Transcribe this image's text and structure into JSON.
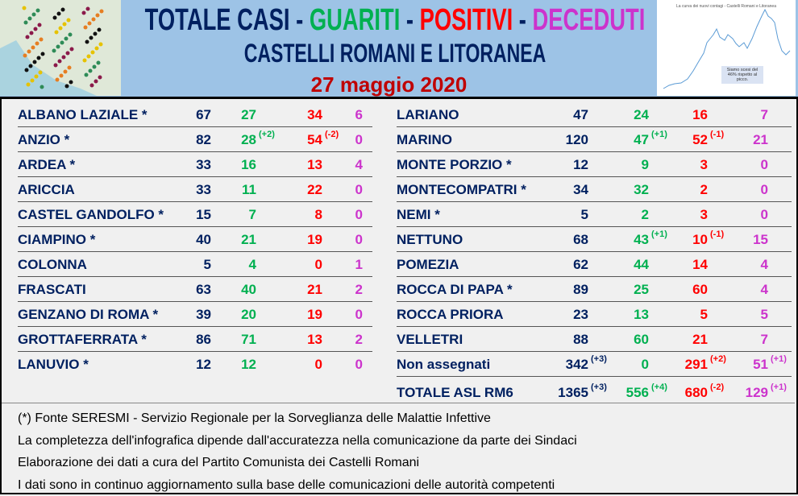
{
  "header": {
    "title_parts": [
      {
        "text": "TOTALE CASI",
        "color": "#002060"
      },
      {
        "text": " - ",
        "color": "#002060"
      },
      {
        "text": "GUARITI",
        "color": "#00b050"
      },
      {
        "text": " - ",
        "color": "#002060"
      },
      {
        "text": "POSITIVI",
        "color": "#ff0000"
      },
      {
        "text": " - ",
        "color": "#002060"
      },
      {
        "text": "DECEDUTI",
        "color": "#cc33cc"
      }
    ],
    "subtitle": "CASTELLI ROMANI E LITORANEA",
    "date": "27 maggio 2020"
  },
  "thumbnail": {
    "title": "La curva dei nuovi contagi - Castelli Romani e Litoranea",
    "note": "Siamo scesi del 46% rispetto al picco."
  },
  "colors": {
    "total": "#002060",
    "guariti": "#00b050",
    "positivi": "#ff0000",
    "deceduti": "#cc33cc"
  },
  "left_rows": [
    {
      "name": "ALBANO LAZIALE *",
      "values": [
        "67",
        "27",
        "34",
        "6"
      ],
      "deltas": [
        "",
        "",
        "",
        ""
      ]
    },
    {
      "name": "ANZIO *",
      "values": [
        "82",
        "28",
        "54",
        "0"
      ],
      "deltas": [
        "",
        "(+2)",
        "(-2)",
        ""
      ]
    },
    {
      "name": "ARDEA *",
      "values": [
        "33",
        "16",
        "13",
        "4"
      ],
      "deltas": [
        "",
        "",
        "",
        ""
      ]
    },
    {
      "name": "ARICCIA",
      "values": [
        "33",
        "11",
        "22",
        "0"
      ],
      "deltas": [
        "",
        "",
        "",
        ""
      ]
    },
    {
      "name": "CASTEL GANDOLFO *",
      "values": [
        "15",
        "7",
        "8",
        "0"
      ],
      "deltas": [
        "",
        "",
        "",
        ""
      ]
    },
    {
      "name": "CIAMPINO *",
      "values": [
        "40",
        "21",
        "19",
        "0"
      ],
      "deltas": [
        "",
        "",
        "",
        ""
      ]
    },
    {
      "name": "COLONNA",
      "values": [
        "5",
        "4",
        "0",
        "1"
      ],
      "deltas": [
        "",
        "",
        "",
        ""
      ]
    },
    {
      "name": "FRASCATI",
      "values": [
        "63",
        "40",
        "21",
        "2"
      ],
      "deltas": [
        "",
        "",
        "",
        ""
      ]
    },
    {
      "name": "GENZANO DI ROMA *",
      "values": [
        "39",
        "20",
        "19",
        "0"
      ],
      "deltas": [
        "",
        "",
        "",
        ""
      ]
    },
    {
      "name": "GROTTAFERRATA *",
      "values": [
        "86",
        "71",
        "13",
        "2"
      ],
      "deltas": [
        "",
        "",
        "",
        ""
      ]
    },
    {
      "name": "LANUVIO *",
      "values": [
        "12",
        "12",
        "0",
        "0"
      ],
      "deltas": [
        "",
        "",
        "",
        ""
      ]
    }
  ],
  "right_rows": [
    {
      "name": "LARIANO",
      "values": [
        "47",
        "24",
        "16",
        "7"
      ],
      "deltas": [
        "",
        "",
        "",
        ""
      ]
    },
    {
      "name": "MARINO",
      "values": [
        "120",
        "47",
        "52",
        "21"
      ],
      "deltas": [
        "",
        "(+1)",
        "(-1)",
        ""
      ]
    },
    {
      "name": "MONTE PORZIO *",
      "values": [
        "12",
        "9",
        "3",
        "0"
      ],
      "deltas": [
        "",
        "",
        "",
        ""
      ]
    },
    {
      "name": "MONTECOMPATRI *",
      "values": [
        "34",
        "32",
        "2",
        "0"
      ],
      "deltas": [
        "",
        "",
        "",
        ""
      ]
    },
    {
      "name": "NEMI *",
      "values": [
        "5",
        "2",
        "3",
        "0"
      ],
      "deltas": [
        "",
        "",
        "",
        ""
      ]
    },
    {
      "name": "NETTUNO",
      "values": [
        "68",
        "43",
        "10",
        "15"
      ],
      "deltas": [
        "",
        "(+1)",
        "(-1)",
        ""
      ]
    },
    {
      "name": "POMEZIA",
      "values": [
        "62",
        "44",
        "14",
        "4"
      ],
      "deltas": [
        "",
        "",
        "",
        ""
      ]
    },
    {
      "name": "ROCCA DI PAPA *",
      "values": [
        "89",
        "25",
        "60",
        "4"
      ],
      "deltas": [
        "",
        "",
        "",
        ""
      ]
    },
    {
      "name": "ROCCA PRIORA",
      "values": [
        "23",
        "13",
        "5",
        "5"
      ],
      "deltas": [
        "",
        "",
        "",
        ""
      ]
    },
    {
      "name": "VELLETRI",
      "values": [
        "88",
        "60",
        "21",
        "7"
      ],
      "deltas": [
        "",
        "",
        "",
        ""
      ]
    },
    {
      "name": "Non assegnati",
      "values": [
        "342",
        "0",
        "291",
        "51"
      ],
      "deltas": [
        "(+3)",
        "",
        "(+2)",
        "(+1)"
      ]
    },
    {
      "name": "TOTALE ASL RM6",
      "values": [
        "1365",
        "556",
        "680",
        "129"
      ],
      "deltas": [
        "(+3)",
        "(+4)",
        "(-2)",
        "(+1)"
      ]
    }
  ],
  "footer": [
    "(*) Fonte SERESMI - Servizio Regionale per la Sorveglianza delle Malattie Infettive",
    "La completezza dell'infografica dipende dall'accuratezza nella comunicazione da parte dei Sindaci",
    "Elaborazione dei dati a cura del Partito Comunista dei Castelli Romani",
    "I dati sono in continuo aggiornamento sulla base delle comunicazioni delle autorità competenti"
  ]
}
